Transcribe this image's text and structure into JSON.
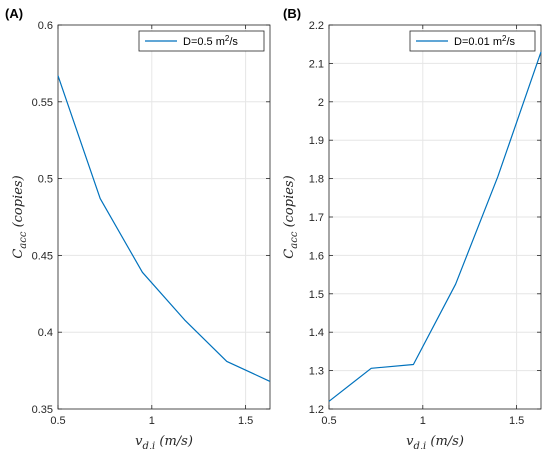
{
  "colors": {
    "line": "#0072BD",
    "grid": "#e6e6e6",
    "axis": "#262626"
  },
  "chart_data": [
    {
      "type": "line",
      "panel_label": "(A)",
      "xlabel": "v_{d,i} (m/s)",
      "ylabel": "C_{acc} (copies)",
      "xlim": [
        0.5,
        1.63
      ],
      "ylim": [
        0.35,
        0.6
      ],
      "xticks": [
        0.5,
        1,
        1.5
      ],
      "xtick_labels": [
        "0.5",
        "1",
        "1.5"
      ],
      "yticks": [
        0.35,
        0.4,
        0.45,
        0.5,
        0.55,
        0.6
      ],
      "ytick_labels": [
        "0.35",
        "0.4",
        "0.45",
        "0.5",
        "0.55",
        "0.6"
      ],
      "grid": true,
      "legend_position": "top-right",
      "legend_entries": [
        "D=0.5 m²/s"
      ],
      "series": [
        {
          "name": "D=0.5 m²/s",
          "x": [
            0.5,
            0.725,
            0.95,
            1.175,
            1.4,
            1.63
          ],
          "y": [
            0.567,
            0.487,
            0.439,
            0.408,
            0.381,
            0.368
          ]
        }
      ]
    },
    {
      "type": "line",
      "panel_label": "(B)",
      "xlabel": "v_{d,i} (m/s)",
      "ylabel": "C_{acc} (copies)",
      "xlim": [
        0.5,
        1.63
      ],
      "ylim": [
        1.2,
        2.2
      ],
      "xticks": [
        0.5,
        1,
        1.5
      ],
      "xtick_labels": [
        "0.5",
        "1",
        "1.5"
      ],
      "yticks": [
        1.2,
        1.3,
        1.4,
        1.5,
        1.6,
        1.7,
        1.8,
        1.9,
        2.0,
        2.1,
        2.2
      ],
      "ytick_labels": [
        "1.2",
        "1.3",
        "1.4",
        "1.5",
        "1.6",
        "1.7",
        "1.8",
        "1.9",
        "2",
        "2.1",
        "2.2"
      ],
      "grid": true,
      "legend_position": "top-right",
      "legend_entries": [
        "D=0.01 m²/s"
      ],
      "series": [
        {
          "name": "D=0.01 m²/s",
          "x": [
            0.5,
            0.725,
            0.95,
            1.175,
            1.4,
            1.63
          ],
          "y": [
            1.22,
            1.306,
            1.316,
            1.525,
            1.805,
            2.13
          ]
        }
      ]
    }
  ]
}
